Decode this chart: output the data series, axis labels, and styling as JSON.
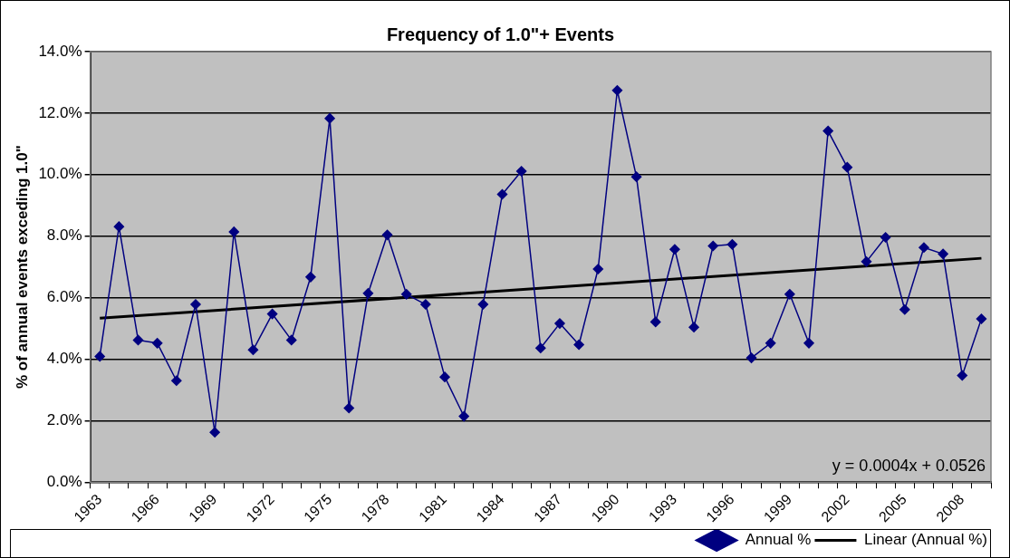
{
  "chart_data": {
    "type": "line",
    "title": "Frequency of 1.0\"+ Events",
    "ylabel": "% of annual events exceding 1.0\"",
    "categories": [
      "1963",
      null,
      null,
      "1966",
      null,
      null,
      "1969",
      null,
      null,
      "1972",
      null,
      null,
      "1975",
      null,
      null,
      "1978",
      null,
      null,
      "1981",
      null,
      null,
      "1984",
      null,
      null,
      "1987",
      null,
      null,
      "1990",
      null,
      null,
      "1993",
      null,
      null,
      "1996",
      null,
      null,
      "1999",
      null,
      null,
      "2002",
      null,
      null,
      "2005",
      null,
      null,
      "2008",
      null
    ],
    "series": [
      {
        "name": "Annual %",
        "color": "#000080",
        "marker": "diamond",
        "values": [
          4.09,
          8.31,
          4.62,
          4.52,
          3.3,
          5.78,
          1.62,
          8.14,
          4.3,
          5.47,
          4.62,
          6.67,
          11.83,
          2.41,
          6.14,
          8.04,
          6.11,
          5.78,
          3.42,
          2.14,
          5.78,
          9.36,
          10.11,
          4.36,
          5.16,
          4.47,
          6.93,
          12.74,
          9.93,
          5.21,
          7.57,
          5.04,
          7.68,
          7.73,
          4.04,
          4.52,
          6.11,
          4.52,
          11.42,
          10.24,
          7.17,
          7.96,
          5.61,
          7.63,
          7.42,
          3.47,
          5.31
        ]
      },
      {
        "name": "Linear (Annual %)",
        "color": "#000000",
        "marker": "none",
        "values": [
          5.33,
          null,
          null,
          null,
          null,
          null,
          null,
          null,
          null,
          null,
          null,
          null,
          null,
          null,
          null,
          null,
          null,
          null,
          null,
          null,
          null,
          null,
          null,
          null,
          null,
          null,
          null,
          null,
          null,
          null,
          null,
          null,
          null,
          null,
          null,
          null,
          null,
          null,
          null,
          null,
          null,
          null,
          null,
          null,
          null,
          null,
          7.28
        ]
      }
    ],
    "ylim": [
      0,
      14
    ],
    "yticks": [
      {
        "value": 0,
        "label": "0.0%"
      },
      {
        "value": 2,
        "label": "2.0%"
      },
      {
        "value": 4,
        "label": "4.0%"
      },
      {
        "value": 6,
        "label": "6.0%"
      },
      {
        "value": 8,
        "label": "8.0%"
      },
      {
        "value": 10,
        "label": "10.0%"
      },
      {
        "value": 12,
        "label": "12.0%"
      },
      {
        "value": 14,
        "label": "14.0%"
      }
    ],
    "grid": "y",
    "legend": "bottom right",
    "annotations": [
      "y = 0.0004x + 0.0526"
    ]
  }
}
